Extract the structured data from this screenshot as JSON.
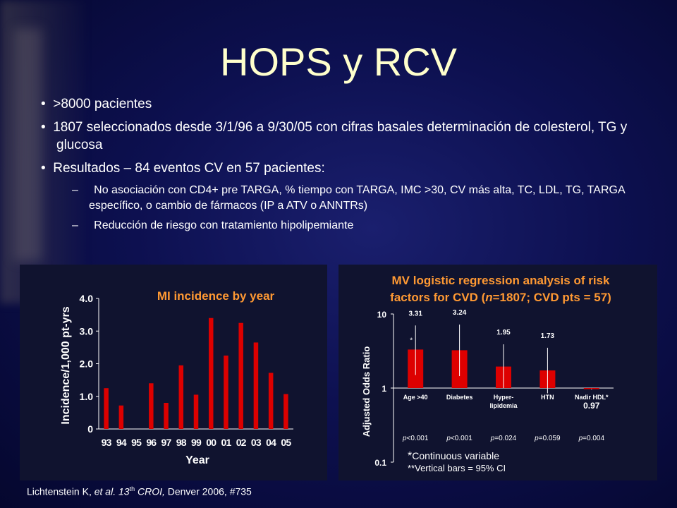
{
  "title": "HOPS y RCV",
  "bullets": [
    ">8000 pacientes",
    "1807 seleccionados desde 3/1/96 a 9/30/05 con cifras basales determinación de colesterol, TG y glucosa",
    "Resultados – 84 eventos CV en 57 pacientes:"
  ],
  "sub_bullets": [
    "No asociación con CD4+  pre TARGA, % tiempo con TARGA, IMC >30, CV más alta, TC,  LDL,  TG, TARGA específico, o cambio de fármacos (IP a ATV o ANNTRs)",
    "Reducción de riesgo con tratamiento hipolipemiante"
  ],
  "dash": "–",
  "bullet_mark": "•",
  "reference": {
    "author": "Lichtenstein K, ",
    "etal": "et al. 13",
    "sup": "th",
    "conf": " CROI,",
    "rest": " Denver 2006, #735"
  },
  "colors": {
    "title": "#ffffcc",
    "chart_title": "#ff9933",
    "bar": "#dd0000"
  },
  "chart_data": [
    {
      "type": "bar",
      "title": "MI incidence by year",
      "xlabel": "Year",
      "ylabel": "Incidence/1,000 pt-yrs",
      "categories": [
        "93",
        "94",
        "95",
        "96",
        "97",
        "98",
        "99",
        "00",
        "01",
        "02",
        "03",
        "04",
        "05"
      ],
      "values": [
        1.25,
        0.72,
        0,
        1.4,
        0.8,
        1.95,
        1.05,
        3.4,
        2.25,
        3.25,
        2.65,
        1.72,
        1.07
      ],
      "ylim": [
        0,
        4.0
      ],
      "yticks": [
        "0",
        "1.0",
        "2.0",
        "3.0",
        "4.0"
      ],
      "ytick_values": [
        0,
        1,
        2,
        3,
        4
      ]
    },
    {
      "type": "bar",
      "title_parts": [
        "MV logistic regression analysis of risk",
        "factors for CVD (",
        "n",
        "=1807; CVD pts = 57)"
      ],
      "ylabel": "Adjusted Odds Ratio",
      "scale": "log",
      "ylim": [
        0.1,
        10
      ],
      "yticks": [
        "0.1",
        "1",
        "10"
      ],
      "ytick_values": [
        0.1,
        1,
        10
      ],
      "categories": [
        "Age >40",
        "Diabetes",
        "Hyper-",
        "HTN",
        "Nadir HDL*"
      ],
      "category_line2": [
        "",
        "",
        "lipidemia",
        "",
        ""
      ],
      "values": [
        3.31,
        3.24,
        1.95,
        1.73,
        0.97
      ],
      "value_labels": [
        "3.31",
        "3.24",
        "1.95",
        "1.73",
        "0.97"
      ],
      "ci_low": [
        1.5,
        1.45,
        1.0,
        0.85,
        0.96
      ],
      "ci_high": [
        7.0,
        7.2,
        3.9,
        3.5,
        0.98
      ],
      "p_prefix": "p",
      "p_values": [
        "<0.001",
        "<0.001",
        "=0.024",
        "=0.059",
        "=0.004"
      ],
      "star_marker": "*",
      "footnote_star": "*",
      "footnote1": "Continuous variable",
      "footnote2": "**Vertical bars = 95% CI"
    }
  ]
}
